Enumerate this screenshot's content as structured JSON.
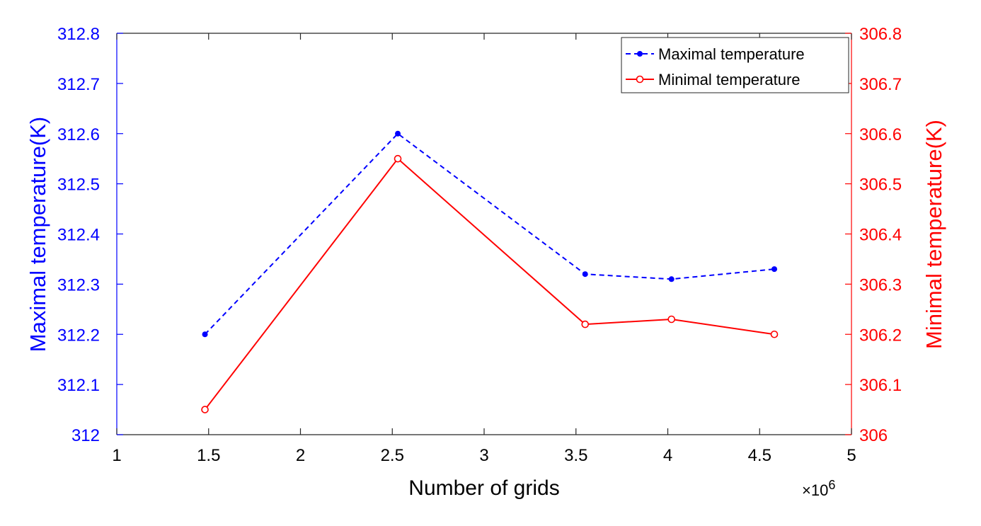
{
  "chart_data": {
    "type": "line",
    "xlabel": "Number of grids",
    "x_multiplier_label": "×10",
    "x_multiplier_exponent": "6",
    "xlim": [
      1,
      5
    ],
    "x_ticks": [
      1,
      1.5,
      2,
      2.5,
      3,
      3.5,
      4,
      4.5,
      5
    ],
    "x_tick_labels": [
      "1",
      "1.5",
      "2",
      "2.5",
      "3",
      "3.5",
      "4",
      "4.5",
      "5"
    ],
    "y_left": {
      "label": "Maximal  temperature(K)",
      "color": "#0000ff",
      "ylim": [
        312,
        312.8
      ],
      "ticks": [
        312,
        312.1,
        312.2,
        312.3,
        312.4,
        312.5,
        312.6,
        312.7,
        312.8
      ],
      "tick_labels": [
        "312",
        "312.1",
        "312.2",
        "312.3",
        "312.4",
        "312.5",
        "312.6",
        "312.7",
        "312.8"
      ]
    },
    "y_right": {
      "label": "Minimal temperature(K)",
      "color": "#ff0000",
      "ylim": [
        306,
        306.8
      ],
      "ticks": [
        306,
        306.1,
        306.2,
        306.3,
        306.4,
        306.5,
        306.6,
        306.7,
        306.8
      ],
      "tick_labels": [
        "306",
        "306.1",
        "306.2",
        "306.3",
        "306.4",
        "306.5",
        "306.6",
        "306.7",
        "306.8"
      ]
    },
    "series": [
      {
        "name": "Maximal  temperature",
        "axis": "left",
        "color": "#0000ff",
        "line_style": "dashed",
        "marker": "filled-dot",
        "x": [
          1.48,
          2.53,
          3.55,
          4.02,
          4.58
        ],
        "values": [
          312.2,
          312.6,
          312.32,
          312.31,
          312.33
        ]
      },
      {
        "name": "Minimal temperature",
        "axis": "right",
        "color": "#ff0000",
        "line_style": "solid",
        "marker": "open-circle",
        "x": [
          1.48,
          2.53,
          3.55,
          4.02,
          4.58
        ],
        "values": [
          306.05,
          306.55,
          306.22,
          306.23,
          306.2
        ]
      }
    ],
    "legend": {
      "position": "top-right",
      "entries": [
        "Maximal  temperature",
        "Minimal temperature"
      ]
    },
    "grid": false
  }
}
